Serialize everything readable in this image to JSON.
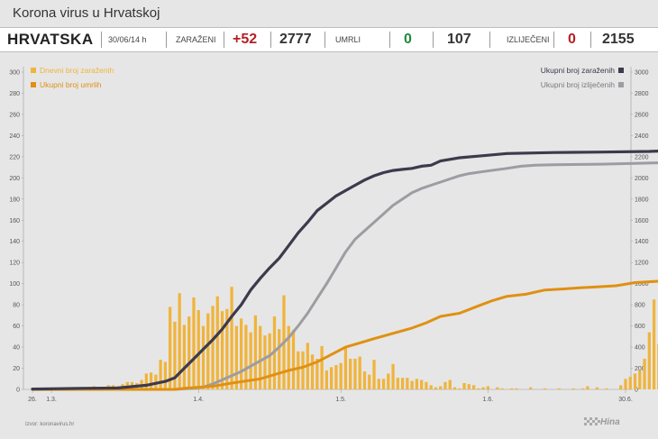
{
  "header": {
    "title": "Korona virus u Hrvatskoj"
  },
  "stats": {
    "country": "HRVATSKA",
    "date": "30/06/14 h",
    "infected_label": "ZARAŽENI",
    "infected_new": "+52",
    "infected_total": "2777",
    "deaths_label": "UMRLI",
    "deaths_new": "0",
    "deaths_total": "107",
    "recovered_label": "IZLIJEČENI",
    "recovered_new": "0",
    "recovered_total": "2155"
  },
  "footer": {
    "source": "Izvor: koronavirus.hr",
    "logo": "Hina"
  },
  "colors": {
    "daily": "#f0b43c",
    "deaths": "#e09012",
    "total": "#3c3a4c",
    "recovered": "#9c9ca2",
    "red": "#b51f24",
    "green": "#1f8a3b"
  },
  "chart_data": {
    "type": "bar",
    "x_start": "26.2.",
    "x_end": "30.6.",
    "x_ticks": [
      "26.",
      "1.3.",
      "1.4.",
      "1.5.",
      "1.6.",
      "30.6."
    ],
    "y_left": {
      "range": [
        0,
        300
      ],
      "ticks": [
        "0",
        "20",
        "40",
        "60",
        "80",
        "100",
        "120",
        "140",
        "160",
        "180",
        "200",
        "220",
        "240",
        "260",
        "280",
        "300"
      ]
    },
    "y_right": {
      "range": [
        0,
        3000
      ],
      "ticks": [
        "0",
        "200",
        "400",
        "600",
        "800",
        "1000",
        "1200",
        "1400",
        "1600",
        "1800",
        "2000",
        "2200",
        "2400",
        "2600",
        "2800",
        "3000"
      ]
    },
    "grid": false,
    "legend": [
      {
        "label": "Dnevni broj zaraženih",
        "axis": "left",
        "position": "top-left"
      },
      {
        "label": "Ukupni broj umrlih",
        "axis": "left",
        "position": "top-left"
      },
      {
        "label": "Ukupni broj zaraženih",
        "axis": "right",
        "position": "top-right"
      },
      {
        "label": "Ukupni broj izliječenih",
        "axis": "right",
        "position": "top-right"
      }
    ],
    "series": [
      {
        "name": "Dnevni broj zaraženih",
        "kind": "bar",
        "values": [
          0,
          0,
          1,
          0,
          0,
          1,
          0,
          0,
          1,
          0,
          2,
          0,
          1,
          3,
          2,
          2,
          4,
          4,
          3,
          5,
          7,
          7,
          6,
          9,
          15,
          16,
          14,
          28,
          26,
          78,
          64,
          91,
          61,
          69,
          87,
          75,
          60,
          72,
          79,
          88,
          74,
          76,
          97,
          60,
          67,
          61,
          54,
          70,
          60,
          51,
          53,
          69,
          57,
          89,
          60,
          56,
          36,
          36,
          44,
          33,
          29,
          41,
          18,
          21,
          23,
          25,
          40,
          29,
          29,
          31,
          17,
          14,
          28,
          10,
          10,
          15,
          24,
          11,
          11,
          11,
          8,
          10,
          9,
          7,
          4,
          2,
          3,
          7,
          9,
          2,
          1,
          6,
          5,
          4,
          1,
          2,
          3,
          0,
          2,
          1,
          0,
          1,
          1,
          0,
          0,
          2,
          0,
          0,
          1,
          0,
          0,
          1,
          0,
          0,
          1,
          0,
          1,
          3,
          0,
          2,
          0,
          1,
          0,
          0,
          4,
          10,
          12,
          15,
          18,
          29,
          54,
          85,
          43,
          84,
          62,
          32,
          52
        ]
      },
      {
        "name": "Ukupni broj umrlih",
        "kind": "line",
        "axis": "left",
        "points": [
          [
            0,
            0
          ],
          [
            30,
            0
          ],
          [
            32,
            1
          ],
          [
            38,
            3
          ],
          [
            42,
            6
          ],
          [
            45,
            8
          ],
          [
            48,
            10
          ],
          [
            51,
            14
          ],
          [
            54,
            18
          ],
          [
            57,
            21
          ],
          [
            60,
            26
          ],
          [
            63,
            33
          ],
          [
            66,
            40
          ],
          [
            69,
            44
          ],
          [
            72,
            48
          ],
          [
            76,
            53
          ],
          [
            80,
            58
          ],
          [
            83,
            63
          ],
          [
            86,
            69
          ],
          [
            90,
            72
          ],
          [
            94,
            79
          ],
          [
            97,
            84
          ],
          [
            100,
            88
          ],
          [
            104,
            90
          ],
          [
            108,
            94
          ],
          [
            112,
            95
          ],
          [
            115,
            96
          ],
          [
            119,
            97
          ],
          [
            123,
            98
          ],
          [
            127,
            101
          ],
          [
            131,
            102
          ],
          [
            135,
            103
          ],
          [
            140,
            104
          ],
          [
            144,
            105
          ],
          [
            150,
            106
          ],
          [
            154,
            107
          ],
          [
            170,
            107
          ]
        ]
      },
      {
        "name": "Ukupni broj zaraženih",
        "kind": "line",
        "axis": "right",
        "points": [
          [
            0,
            3
          ],
          [
            10,
            10
          ],
          [
            18,
            14
          ],
          [
            24,
            39
          ],
          [
            28,
            76
          ],
          [
            30,
            110
          ],
          [
            32,
            200
          ],
          [
            34,
            290
          ],
          [
            36,
            380
          ],
          [
            38,
            470
          ],
          [
            40,
            570
          ],
          [
            42,
            690
          ],
          [
            44,
            800
          ],
          [
            46,
            940
          ],
          [
            48,
            1050
          ],
          [
            50,
            1150
          ],
          [
            52,
            1240
          ],
          [
            54,
            1360
          ],
          [
            56,
            1480
          ],
          [
            58,
            1580
          ],
          [
            60,
            1690
          ],
          [
            62,
            1760
          ],
          [
            64,
            1830
          ],
          [
            66,
            1880
          ],
          [
            68,
            1930
          ],
          [
            70,
            1980
          ],
          [
            72,
            2020
          ],
          [
            74,
            2050
          ],
          [
            76,
            2070
          ],
          [
            78,
            2080
          ],
          [
            80,
            2090
          ],
          [
            82,
            2110
          ],
          [
            84,
            2120
          ],
          [
            86,
            2160
          ],
          [
            90,
            2190
          ],
          [
            95,
            2210
          ],
          [
            100,
            2230
          ],
          [
            110,
            2240
          ],
          [
            120,
            2244
          ],
          [
            130,
            2250
          ],
          [
            136,
            2260
          ],
          [
            138,
            2280
          ],
          [
            140,
            2320
          ],
          [
            142,
            2380
          ],
          [
            144,
            2450
          ],
          [
            146,
            2580
          ],
          [
            148,
            2690
          ],
          [
            150,
            2730
          ],
          [
            152,
            2777
          ]
        ]
      },
      {
        "name": "Ukupni broj izliječenih",
        "kind": "line",
        "axis": "right",
        "points": [
          [
            20,
            0
          ],
          [
            30,
            1
          ],
          [
            34,
            10
          ],
          [
            36,
            22
          ],
          [
            38,
            52
          ],
          [
            40,
            90
          ],
          [
            42,
            130
          ],
          [
            44,
            170
          ],
          [
            46,
            220
          ],
          [
            48,
            270
          ],
          [
            50,
            320
          ],
          [
            52,
            400
          ],
          [
            54,
            490
          ],
          [
            56,
            600
          ],
          [
            58,
            720
          ],
          [
            60,
            860
          ],
          [
            62,
            1000
          ],
          [
            64,
            1150
          ],
          [
            66,
            1300
          ],
          [
            68,
            1420
          ],
          [
            70,
            1500
          ],
          [
            72,
            1580
          ],
          [
            74,
            1660
          ],
          [
            76,
            1740
          ],
          [
            78,
            1800
          ],
          [
            80,
            1860
          ],
          [
            82,
            1900
          ],
          [
            84,
            1930
          ],
          [
            86,
            1960
          ],
          [
            88,
            1990
          ],
          [
            90,
            2020
          ],
          [
            92,
            2040
          ],
          [
            95,
            2060
          ],
          [
            100,
            2090
          ],
          [
            103,
            2110
          ],
          [
            106,
            2120
          ],
          [
            110,
            2125
          ],
          [
            120,
            2130
          ],
          [
            130,
            2140
          ],
          [
            140,
            2150
          ],
          [
            152,
            2155
          ]
        ]
      }
    ]
  }
}
